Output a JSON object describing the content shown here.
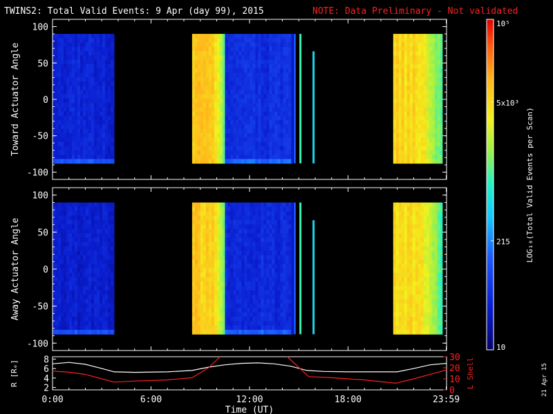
{
  "chart_data": {
    "type": "heatmap",
    "title": "TWINS2: Total Valid Events:  9 Apr (day  99), 2015",
    "note": "NOTE: Data Preliminary - Not validated",
    "note_color": "#ff2020",
    "panels": [
      {
        "ylabel": "Toward Actuator Angle",
        "yticks": [
          "100",
          "50",
          "0",
          "-50",
          "-100"
        ],
        "ylim": [
          -110,
          110
        ],
        "data_range_deg": [
          -88,
          90
        ],
        "blocks": [
          {
            "t0": 0.0,
            "t1": 3.75,
            "level": "low",
            "base": 0.14
          },
          {
            "t0": 8.5,
            "t1": 10.5,
            "level": "high",
            "base": 0.78
          },
          {
            "t0": 10.5,
            "t1": 14.6,
            "level": "low",
            "base": 0.17
          },
          {
            "t0": 20.75,
            "t1": 23.75,
            "level": "high",
            "base": 0.75
          }
        ],
        "spikes": [
          {
            "t": 14.6,
            "deg_top": 90,
            "deg_bot": -88,
            "level": 0.12
          },
          {
            "t": 14.75,
            "deg_top": 90,
            "deg_bot": -88,
            "level": 0.27
          },
          {
            "t": 15.1,
            "deg_top": 90,
            "deg_bot": -88,
            "level": 0.52
          },
          {
            "t": 15.9,
            "deg_top": 66,
            "deg_bot": -88,
            "level": 0.44
          }
        ]
      },
      {
        "ylabel": "Away Actuator Angle",
        "yticks": [
          "100",
          "50",
          "0",
          "-50",
          "-100"
        ],
        "ylim": [
          -110,
          110
        ],
        "data_range_deg": [
          -88,
          90
        ],
        "blocks": [
          {
            "t0": 0.0,
            "t1": 3.75,
            "level": "low",
            "base": 0.13
          },
          {
            "t0": 8.5,
            "t1": 10.5,
            "level": "high",
            "base": 0.78
          },
          {
            "t0": 10.5,
            "t1": 14.6,
            "level": "low",
            "base": 0.16
          },
          {
            "t0": 20.75,
            "t1": 23.75,
            "level": "high",
            "base": 0.74
          }
        ],
        "spikes": [
          {
            "t": 14.6,
            "deg_top": 90,
            "deg_bot": -88,
            "level": 0.12
          },
          {
            "t": 14.75,
            "deg_top": 90,
            "deg_bot": -88,
            "level": 0.27
          },
          {
            "t": 15.1,
            "deg_top": 90,
            "deg_bot": -88,
            "level": 0.52
          },
          {
            "t": 15.9,
            "deg_top": 66,
            "deg_bot": -88,
            "level": 0.44
          }
        ]
      }
    ],
    "xlim_hours": [
      0,
      24
    ],
    "xticks": [
      {
        "t": 0,
        "label": "0:00"
      },
      {
        "t": 6,
        "label": "6:00"
      },
      {
        "t": 12,
        "label": "12:00"
      },
      {
        "t": 18,
        "label": "18:00"
      },
      {
        "t": 23.98,
        "label": "23:59"
      }
    ],
    "xlabel": "Time (UT)",
    "colorbar": {
      "label": "LOG₁₀(Total Valid Events per Scan)",
      "ticks": [
        {
          "frac": 0.0,
          "label": "10"
        },
        {
          "frac": 0.33,
          "label": "215"
        },
        {
          "frac": 0.75,
          "label": "5x10³"
        },
        {
          "frac": 1.0,
          "label": "10⁵"
        }
      ]
    },
    "orbit": {
      "ylabel_left": "R [Rₑ]",
      "ylabel_right": "L Shell",
      "ylabel_right_color": "#ff2020",
      "left_ticks": [
        "8",
        "6",
        "4",
        "2"
      ],
      "left_range": [
        1.5,
        8.5
      ],
      "right_ticks": [
        "30",
        "20",
        "10",
        "0"
      ],
      "right_range": [
        0,
        30
      ],
      "r_points": [
        [
          0,
          7.0
        ],
        [
          1,
          7.3
        ],
        [
          2,
          6.9
        ],
        [
          3,
          6.0
        ],
        [
          3.75,
          5.3
        ],
        [
          5,
          5.2
        ],
        [
          7,
          5.3
        ],
        [
          8.5,
          5.6
        ],
        [
          9.5,
          6.3
        ],
        [
          10.5,
          6.8
        ],
        [
          11.5,
          7.1
        ],
        [
          12.5,
          7.2
        ],
        [
          13.5,
          7.0
        ],
        [
          14.5,
          6.5
        ],
        [
          15.5,
          5.6
        ],
        [
          16.5,
          5.4
        ],
        [
          18,
          5.3
        ],
        [
          20,
          5.3
        ],
        [
          21,
          5.3
        ],
        [
          22,
          6.0
        ],
        [
          23,
          6.8
        ],
        [
          24,
          7.1
        ]
      ],
      "l_points": [
        [
          0,
          17
        ],
        [
          1,
          16
        ],
        [
          2,
          14
        ],
        [
          3,
          10
        ],
        [
          3.75,
          7
        ],
        [
          5,
          8
        ],
        [
          7,
          9
        ],
        [
          8.5,
          11
        ],
        [
          9.5,
          20
        ],
        [
          10.2,
          30
        ]
      ],
      "l_points_2": [
        [
          14.3,
          30
        ],
        [
          15.6,
          12
        ],
        [
          17,
          11
        ],
        [
          19,
          9
        ],
        [
          20.9,
          6
        ],
        [
          22,
          10
        ],
        [
          23,
          14
        ],
        [
          24,
          18
        ]
      ]
    },
    "date_stamp": "21 Apr 15"
  }
}
